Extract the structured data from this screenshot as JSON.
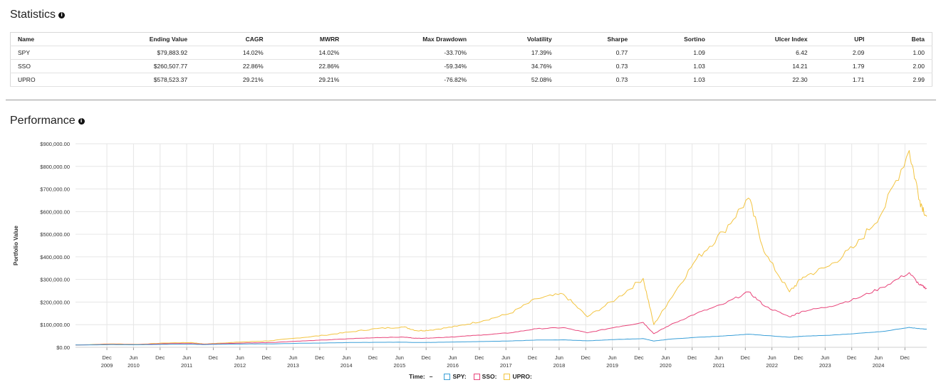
{
  "statistics": {
    "title": "Statistics",
    "info_icon": "info-circle-icon",
    "columns": [
      "Name",
      "Ending Value",
      "CAGR",
      "MWRR",
      "Max Drawdown",
      "Volatility",
      "Sharpe",
      "Sortino",
      "Ulcer Index",
      "UPI",
      "Beta"
    ],
    "rows": [
      [
        "SPY",
        "$79,883.92",
        "14.02%",
        "14.02%",
        "-33.70%",
        "17.39%",
        "0.77",
        "1.09",
        "6.42",
        "2.09",
        "1.00"
      ],
      [
        "SSO",
        "$260,507.77",
        "22.86%",
        "22.86%",
        "-59.34%",
        "34.76%",
        "0.73",
        "1.03",
        "14.21",
        "1.79",
        "2.00"
      ],
      [
        "UPRO",
        "$578,523.37",
        "29.21%",
        "29.21%",
        "-76.82%",
        "52.08%",
        "0.73",
        "1.03",
        "22.30",
        "1.71",
        "2.99"
      ]
    ]
  },
  "performance": {
    "title": "Performance",
    "info_icon": "info-circle-icon"
  },
  "legend": {
    "time_label": "Time:",
    "time_value": "–",
    "items": [
      {
        "label": "SPY:",
        "color": "#3a9fd8"
      },
      {
        "label": "SSO:",
        "color": "#e8457a"
      },
      {
        "label": "UPRO:",
        "color": "#f3c440"
      }
    ]
  },
  "chart_data": {
    "type": "line",
    "ylabel": "Portfolio Value",
    "xlabel": "",
    "ylim": [
      0,
      900000
    ],
    "yticks": [
      "$0.00",
      "$100,000.00",
      "$200,000.00",
      "$300,000.00",
      "$400,000.00",
      "$500,000.00",
      "$600,000.00",
      "$700,000.00",
      "$800,000.00",
      "$900,000.00"
    ],
    "xlim": [
      2009.33,
      2025.33
    ],
    "xticks": [
      {
        "t": 2009.92,
        "top": "Dec",
        "bottom": "2009"
      },
      {
        "t": 2010.42,
        "top": "Jun",
        "bottom": "2010"
      },
      {
        "t": 2010.92,
        "top": "Dec",
        "bottom": ""
      },
      {
        "t": 2011.42,
        "top": "Jun",
        "bottom": "2011"
      },
      {
        "t": 2011.92,
        "top": "Dec",
        "bottom": ""
      },
      {
        "t": 2012.42,
        "top": "Jun",
        "bottom": "2012"
      },
      {
        "t": 2012.92,
        "top": "Dec",
        "bottom": ""
      },
      {
        "t": 2013.42,
        "top": "Jun",
        "bottom": "2013"
      },
      {
        "t": 2013.92,
        "top": "Dec",
        "bottom": ""
      },
      {
        "t": 2014.42,
        "top": "Jun",
        "bottom": "2014"
      },
      {
        "t": 2014.92,
        "top": "Dec",
        "bottom": ""
      },
      {
        "t": 2015.42,
        "top": "Jun",
        "bottom": "2015"
      },
      {
        "t": 2015.92,
        "top": "Dec",
        "bottom": ""
      },
      {
        "t": 2016.42,
        "top": "Jun",
        "bottom": "2016"
      },
      {
        "t": 2016.92,
        "top": "Dec",
        "bottom": ""
      },
      {
        "t": 2017.42,
        "top": "Jun",
        "bottom": "2017"
      },
      {
        "t": 2017.92,
        "top": "Dec",
        "bottom": ""
      },
      {
        "t": 2018.42,
        "top": "Jun",
        "bottom": "2018"
      },
      {
        "t": 2018.92,
        "top": "Dec",
        "bottom": ""
      },
      {
        "t": 2019.42,
        "top": "Jun",
        "bottom": "2019"
      },
      {
        "t": 2019.92,
        "top": "Dec",
        "bottom": ""
      },
      {
        "t": 2020.42,
        "top": "Jun",
        "bottom": "2020"
      },
      {
        "t": 2020.92,
        "top": "Dec",
        "bottom": ""
      },
      {
        "t": 2021.42,
        "top": "Jun",
        "bottom": "2021"
      },
      {
        "t": 2021.92,
        "top": "Dec",
        "bottom": ""
      },
      {
        "t": 2022.42,
        "top": "Jun",
        "bottom": "2022"
      },
      {
        "t": 2022.92,
        "top": "Dec",
        "bottom": ""
      },
      {
        "t": 2023.42,
        "top": "Jun",
        "bottom": "2023"
      },
      {
        "t": 2023.92,
        "top": "Dec",
        "bottom": ""
      },
      {
        "t": 2024.42,
        "top": "Jun",
        "bottom": "2024"
      },
      {
        "t": 2024.92,
        "top": "Dec",
        "bottom": ""
      }
    ],
    "grid": true,
    "series": [
      {
        "name": "SPY",
        "color": "#3a9fd8",
        "x": [
          2009.33,
          2010.0,
          2010.5,
          2011.0,
          2011.5,
          2011.75,
          2012.0,
          2012.5,
          2013.0,
          2013.5,
          2014.0,
          2014.5,
          2015.0,
          2015.5,
          2015.75,
          2016.0,
          2016.5,
          2017.0,
          2017.5,
          2018.0,
          2018.5,
          2018.95,
          2019.5,
          2020.0,
          2020.2,
          2020.5,
          2021.0,
          2021.5,
          2021.98,
          2022.3,
          2022.75,
          2023.0,
          2023.5,
          2024.0,
          2024.5,
          2025.0,
          2025.2,
          2025.33
        ],
        "values": [
          10000,
          11500,
          11000,
          13000,
          13500,
          12000,
          13200,
          14500,
          15000,
          17500,
          19000,
          21000,
          22000,
          22500,
          21000,
          21500,
          23500,
          25500,
          28000,
          32000,
          33000,
          28500,
          34500,
          38500,
          27500,
          36000,
          44000,
          50000,
          58000,
          52000,
          44500,
          49000,
          53000,
          61000,
          70000,
          88000,
          82000,
          79884
        ]
      },
      {
        "name": "SSO",
        "color": "#e8457a",
        "x": [
          2009.33,
          2010.0,
          2010.5,
          2011.0,
          2011.5,
          2011.75,
          2012.0,
          2012.5,
          2013.0,
          2013.5,
          2014.0,
          2014.5,
          2015.0,
          2015.5,
          2015.75,
          2016.0,
          2016.5,
          2017.0,
          2017.5,
          2018.0,
          2018.5,
          2018.95,
          2019.5,
          2020.0,
          2020.2,
          2020.5,
          2021.0,
          2021.5,
          2021.98,
          2022.3,
          2022.75,
          2023.0,
          2023.5,
          2024.0,
          2024.5,
          2025.0,
          2025.2,
          2025.33
        ],
        "values": [
          10000,
          13000,
          12000,
          16000,
          17000,
          13500,
          15500,
          19000,
          21000,
          27000,
          32000,
          38000,
          43000,
          45000,
          39500,
          41000,
          47000,
          55000,
          64000,
          82000,
          87000,
          64000,
          90000,
          110000,
          60000,
          98000,
          150000,
          190000,
          245000,
          180000,
          135000,
          160000,
          180000,
          215000,
          265000,
          330000,
          275000,
          260508
        ]
      },
      {
        "name": "UPRO",
        "color": "#f3c440",
        "x": [
          2009.33,
          2010.0,
          2010.5,
          2011.0,
          2011.5,
          2011.75,
          2012.0,
          2012.5,
          2013.0,
          2013.5,
          2014.0,
          2014.5,
          2015.0,
          2015.5,
          2015.75,
          2016.0,
          2016.5,
          2017.0,
          2017.5,
          2018.0,
          2018.5,
          2018.95,
          2019.5,
          2020.0,
          2020.2,
          2020.5,
          2021.0,
          2021.5,
          2021.98,
          2022.3,
          2022.75,
          2023.0,
          2023.5,
          2024.0,
          2024.5,
          2025.0,
          2025.2,
          2025.33
        ],
        "values": [
          10000,
          15000,
          13000,
          19000,
          21000,
          14500,
          18000,
          24000,
          29000,
          41000,
          53000,
          68000,
          83000,
          90000,
          73000,
          76000,
          93000,
          118000,
          150000,
          215000,
          235000,
          135000,
          215000,
          305000,
          100000,
          210000,
          390000,
          510000,
          660000,
          410000,
          245000,
          310000,
          360000,
          450000,
          600000,
          870000,
          650000,
          578523
        ]
      }
    ]
  }
}
